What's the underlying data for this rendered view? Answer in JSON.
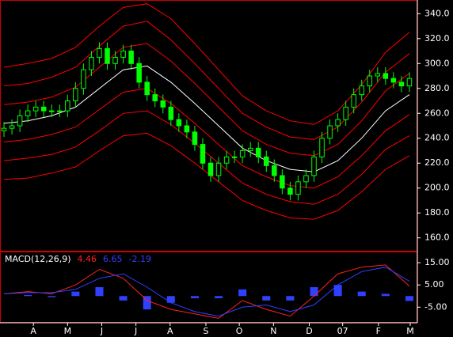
{
  "chart_data": [
    {
      "type": "candlestick",
      "color": "#00ff00",
      "x": [
        0,
        1,
        2,
        3,
        4,
        5,
        6,
        7,
        8,
        9,
        10,
        11,
        12,
        13,
        14,
        15,
        16,
        17,
        18,
        19,
        20,
        21,
        22,
        23,
        24,
        25,
        26,
        27,
        28,
        29,
        30,
        31,
        32,
        33,
        34,
        35,
        36,
        37,
        38,
        39,
        40,
        41,
        42,
        43,
        44,
        45,
        46,
        47,
        48,
        49,
        50,
        51
      ],
      "open": [
        246,
        248,
        250,
        258,
        262,
        265,
        262,
        262,
        262,
        270,
        280,
        295,
        305,
        312,
        300,
        305,
        310,
        300,
        285,
        275,
        270,
        265,
        255,
        250,
        245,
        235,
        220,
        210,
        220,
        225,
        225,
        230,
        232,
        225,
        218,
        210,
        200,
        195,
        205,
        210,
        225,
        240,
        250,
        255,
        265,
        275,
        282,
        290,
        292,
        288,
        285,
        282
      ],
      "high": [
        253,
        255,
        263,
        267,
        270,
        270,
        267,
        267,
        275,
        285,
        300,
        310,
        317,
        317,
        310,
        315,
        315,
        305,
        290,
        280,
        275,
        270,
        260,
        255,
        250,
        240,
        225,
        225,
        230,
        230,
        235,
        237,
        237,
        230,
        223,
        215,
        205,
        210,
        215,
        230,
        245,
        255,
        260,
        270,
        280,
        287,
        295,
        297,
        297,
        293,
        290,
        293
      ],
      "low": [
        241,
        243,
        245,
        253,
        257,
        257,
        257,
        257,
        257,
        265,
        275,
        290,
        300,
        295,
        295,
        300,
        295,
        280,
        270,
        265,
        260,
        250,
        245,
        240,
        230,
        215,
        205,
        205,
        215,
        220,
        220,
        225,
        220,
        213,
        205,
        195,
        190,
        190,
        200,
        205,
        220,
        235,
        245,
        250,
        260,
        270,
        277,
        285,
        283,
        280,
        277,
        277
      ],
      "close": [
        248,
        250,
        258,
        262,
        265,
        262,
        262,
        262,
        270,
        280,
        295,
        305,
        312,
        300,
        305,
        310,
        300,
        285,
        275,
        270,
        265,
        255,
        250,
        245,
        235,
        220,
        210,
        220,
        225,
        225,
        230,
        232,
        225,
        218,
        210,
        200,
        195,
        205,
        210,
        225,
        240,
        250,
        255,
        265,
        275,
        282,
        290,
        292,
        288,
        285,
        282,
        288
      ],
      "series": [
        {
          "color": "#ffffff",
          "x": [
            0,
            3,
            6,
            9,
            12,
            15,
            18,
            21,
            24,
            27,
            30,
            33,
            36,
            39,
            42,
            45,
            48,
            51
          ],
          "values": [
            252,
            254,
            258,
            265,
            280,
            295,
            298,
            285,
            268,
            250,
            232,
            222,
            215,
            213,
            222,
            240,
            262,
            275
          ]
        },
        {
          "color": "#ff0000",
          "x": [
            0,
            3,
            6,
            9,
            12,
            15,
            18,
            21,
            24,
            27,
            30,
            33,
            36,
            39,
            42,
            45,
            48,
            51
          ],
          "values": [
            267,
            269,
            273,
            281,
            297,
            313,
            316,
            302,
            284,
            265,
            246,
            235,
            228,
            226,
            235,
            254,
            278,
            292
          ]
        },
        {
          "color": "#ff0000",
          "x": [
            0,
            3,
            6,
            9,
            12,
            15,
            18,
            21,
            24,
            27,
            30,
            33,
            36,
            39,
            42,
            45,
            48,
            51
          ],
          "values": [
            282,
            284,
            289,
            297,
            314,
            330,
            334,
            319,
            300,
            280,
            260,
            249,
            241,
            239,
            249,
            269,
            293,
            308
          ]
        },
        {
          "color": "#ff0000",
          "x": [
            0,
            3,
            6,
            9,
            12,
            15,
            18,
            21,
            24,
            27,
            30,
            33,
            36,
            39,
            42,
            45,
            48,
            51
          ],
          "values": [
            297,
            300,
            304,
            313,
            330,
            345,
            348,
            336,
            316,
            295,
            274,
            262,
            254,
            251,
            262,
            283,
            309,
            325
          ]
        },
        {
          "color": "#ff0000",
          "x": [
            0,
            3,
            6,
            9,
            12,
            15,
            18,
            21,
            24,
            27,
            30,
            33,
            36,
            39,
            42,
            45,
            48,
            51
          ],
          "values": [
            237,
            239,
            243,
            249,
            263,
            277,
            280,
            268,
            252,
            235,
            218,
            209,
            202,
            200,
            209,
            226,
            246,
            259
          ]
        },
        {
          "color": "#ff0000",
          "x": [
            0,
            3,
            6,
            9,
            12,
            15,
            18,
            21,
            24,
            27,
            30,
            33,
            36,
            39,
            42,
            45,
            48,
            51
          ],
          "values": [
            222,
            224,
            227,
            233,
            246,
            260,
            262,
            251,
            236,
            220,
            204,
            195,
            189,
            187,
            195,
            211,
            231,
            242
          ]
        },
        {
          "color": "#ff0000",
          "x": [
            0,
            3,
            6,
            9,
            12,
            15,
            18,
            21,
            24,
            27,
            30,
            33,
            36,
            39,
            42,
            45,
            48,
            51
          ],
          "values": [
            207,
            208,
            212,
            217,
            230,
            242,
            244,
            234,
            220,
            205,
            190,
            182,
            176,
            175,
            182,
            197,
            215,
            226
          ]
        }
      ],
      "xlim": [
        -0.5,
        52
      ],
      "ylim": [
        149,
        351
      ],
      "yticks": [
        {
          "value": 160,
          "label": "160.0"
        },
        {
          "value": 180,
          "label": "180.0"
        },
        {
          "value": 200,
          "label": "200.0"
        },
        {
          "value": 220,
          "label": "220.0"
        },
        {
          "value": 240,
          "label": "240.0"
        },
        {
          "value": 260,
          "label": "260.0"
        },
        {
          "value": 280,
          "label": "280.0"
        },
        {
          "value": 300,
          "label": "300.0"
        },
        {
          "value": 320,
          "label": "320.0"
        },
        {
          "value": 340,
          "label": "340.0"
        }
      ]
    },
    {
      "type": "line",
      "label": "MACD(12,26,9)",
      "x": [
        0,
        3,
        6,
        9,
        12,
        15,
        18,
        21,
        24,
        27,
        30,
        33,
        36,
        39,
        42,
        45,
        48,
        51
      ],
      "series": [
        {
          "color": "#ff2020",
          "values": [
            1,
            2,
            1,
            5,
            12,
            8,
            -2,
            -6,
            -8,
            -10,
            -2,
            -6,
            -9,
            0,
            10,
            13,
            14,
            4.46
          ]
        },
        {
          "color": "#3040ff",
          "values": [
            1,
            1.5,
            1.5,
            3,
            8,
            10,
            4,
            -3,
            -7,
            -9,
            -5,
            -4,
            -7,
            -4,
            5,
            11,
            13,
            6.65
          ]
        },
        {
          "color": "#3040ff",
          "kind": "bar",
          "values": [
            0,
            0.5,
            -0.5,
            2,
            4,
            -2,
            -6,
            -3,
            -1,
            -1,
            3,
            -2,
            -2,
            4,
            5,
            2,
            1,
            -2.19
          ]
        }
      ],
      "xlim": [
        -0.5,
        52
      ],
      "ylim": [
        -12,
        20
      ],
      "yticks": [
        {
          "value": 15,
          "label": "15.00"
        },
        {
          "value": 5,
          "label": "5.00"
        },
        {
          "value": -5,
          "label": "-5.00"
        }
      ],
      "xticks": [
        {
          "value": 3.7,
          "label": "A"
        },
        {
          "value": 8,
          "label": "M"
        },
        {
          "value": 12.3,
          "label": "J"
        },
        {
          "value": 16.6,
          "label": "J"
        },
        {
          "value": 20.9,
          "label": "A"
        },
        {
          "value": 25.4,
          "label": "S"
        },
        {
          "value": 29.6,
          "label": "O"
        },
        {
          "value": 33.9,
          "label": "N"
        },
        {
          "value": 38.4,
          "label": "D"
        },
        {
          "value": 42.6,
          "label": "07"
        },
        {
          "value": 47.1,
          "label": "F"
        },
        {
          "value": 51.1,
          "label": "M"
        }
      ]
    }
  ]
}
